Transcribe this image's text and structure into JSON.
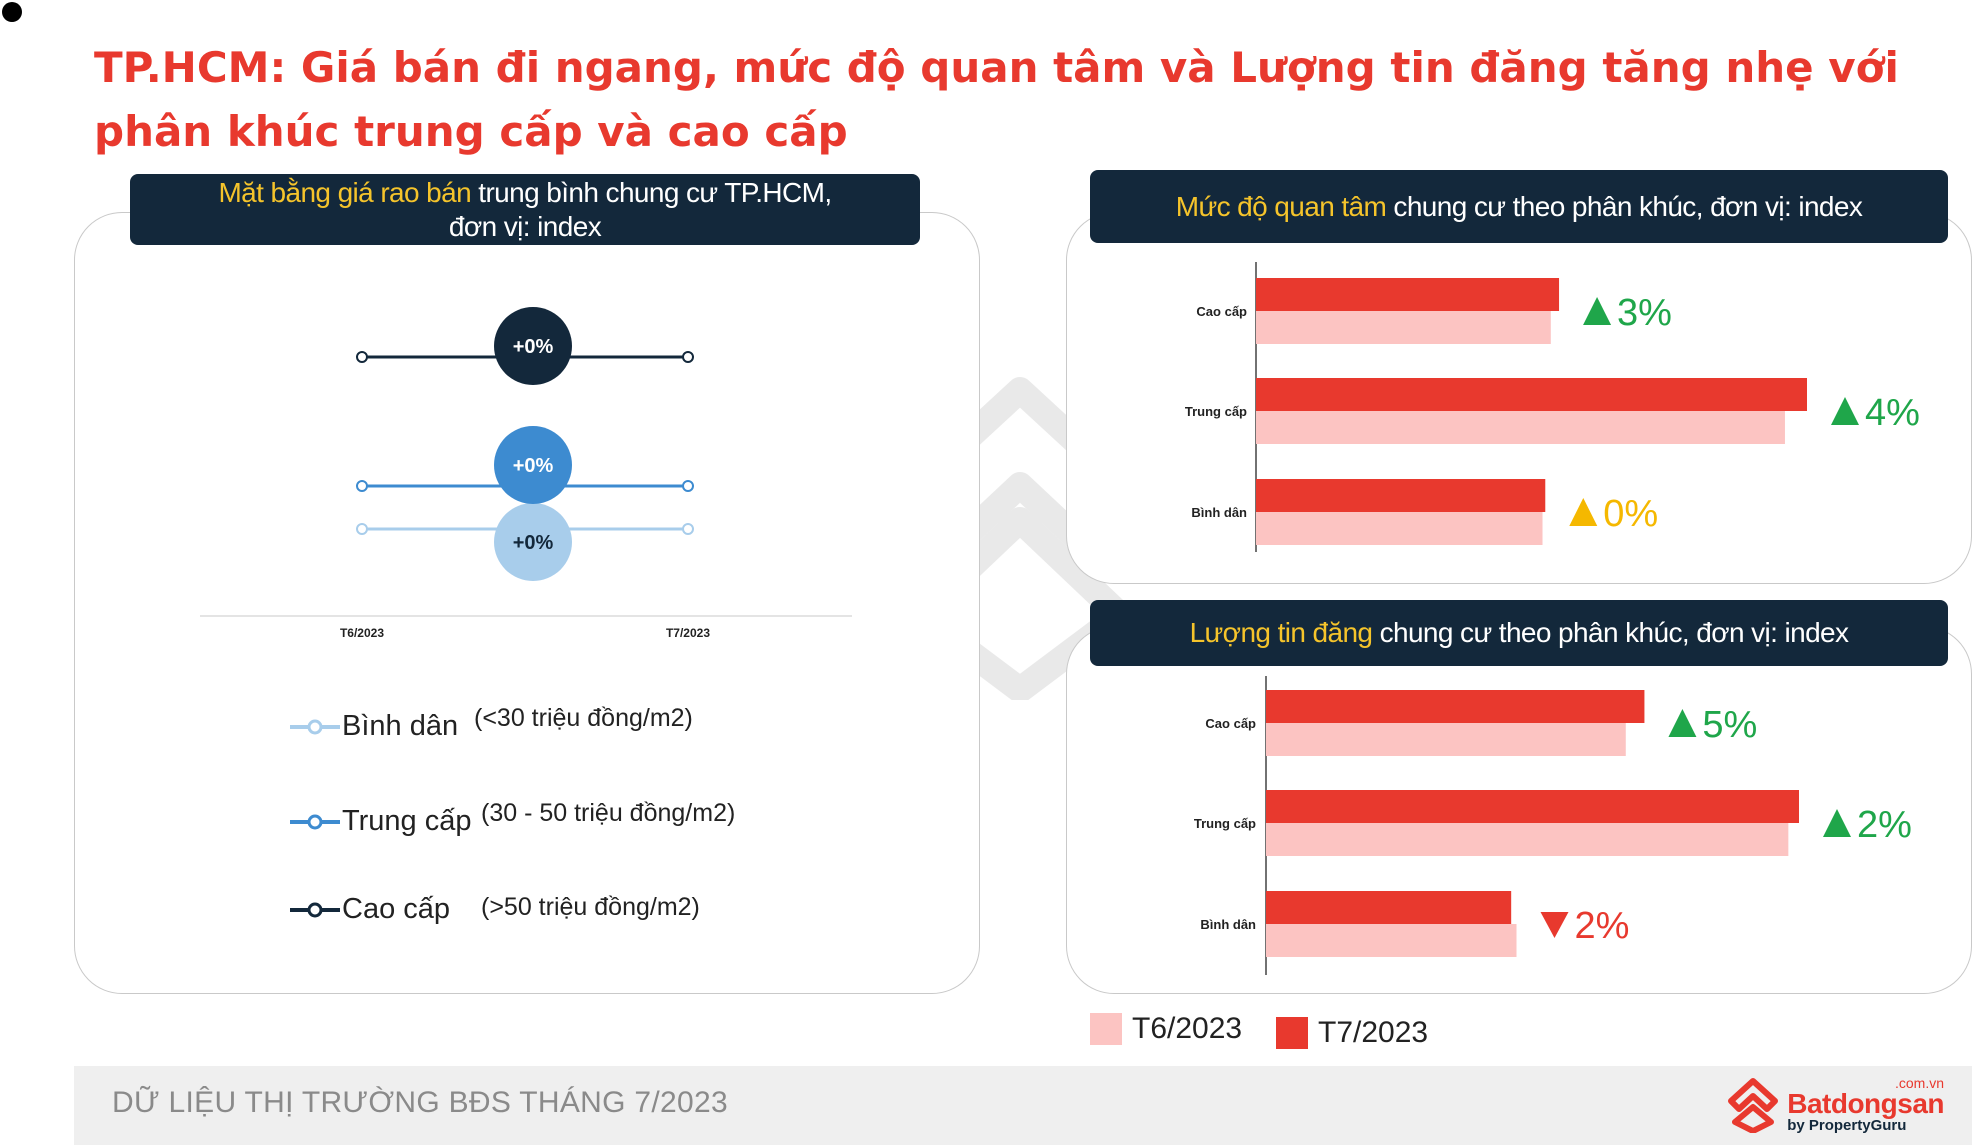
{
  "page": {
    "title": "TP.HCM: Giá bán đi ngang, mức độ quan tâm và Lượng tin đăng tăng nhẹ với phân khúc trung cấp và cao cấp",
    "footer_text": "DỮ LIỆU THỊ TRƯỜNG BĐS THÁNG 7/2023",
    "logo": {
      "main": "Batdongsan",
      "com": ".com.vn",
      "sub": "by PropertyGuru"
    }
  },
  "colors": {
    "title": "#e8392e",
    "banner_bg": "#13283b",
    "highlight": "#f5c42b",
    "t6": "#fcc4c2",
    "t7": "#e8392e",
    "up": "#1fa64a",
    "flat": "#f5b800",
    "down": "#e8392e",
    "cao_cap_line": "#13283b",
    "trung_cap_line": "#3d8bd0",
    "binh_dan_line": "#a8cdeb"
  },
  "price_panel": {
    "banner_highlight": "Mặt bằng giá rao bán",
    "banner_rest": " trung bình chung cư TP.HCM,",
    "banner_line2": "đơn vị: index",
    "legend": [
      {
        "key": "binh_dan",
        "label": "Bình dân",
        "range": "(<30 triệu đồng/m2)"
      },
      {
        "key": "trung_cap",
        "label": "Trung cấp",
        "range": "(30 - 50 triệu đồng/m2)"
      },
      {
        "key": "cao_cap",
        "label": "Cao cấp",
        "range": "(>50 triệu đồng/m2)"
      }
    ]
  },
  "interest_panel": {
    "banner_highlight": "Mức độ quan tâm",
    "banner_rest": " chung cư theo phân khúc, đơn vị: index"
  },
  "listing_panel": {
    "banner_highlight": "Lượng tin đăng",
    "banner_rest": " chung cư theo phân khúc, đơn vị: index"
  },
  "bar_legend": [
    {
      "key": "t6",
      "label": "T6/2023"
    },
    {
      "key": "t7",
      "label": "T7/2023"
    }
  ],
  "chart_data": [
    {
      "id": "price",
      "type": "line",
      "title": "Mặt bằng giá rao bán trung bình chung cư TP.HCM, đơn vị: index",
      "categories": [
        "T6/2023",
        "T7/2023"
      ],
      "series": [
        {
          "name": "Cao cấp",
          "values": [
            100,
            100
          ],
          "change_label": "+0%"
        },
        {
          "name": "Trung cấp",
          "values": [
            100,
            100
          ],
          "change_label": "+0%"
        },
        {
          "name": "Bình dân",
          "values": [
            100,
            100
          ],
          "change_label": "+0%"
        }
      ]
    },
    {
      "id": "interest",
      "type": "bar",
      "orientation": "horizontal",
      "title": "Mức độ quan tâm chung cư theo phân khúc, đơn vị: index",
      "categories": [
        "Cao cấp",
        "Trung cấp",
        "Bình dân"
      ],
      "series": [
        {
          "name": "T7/2023",
          "values": [
            0.55,
            1.0,
            0.525
          ]
        },
        {
          "name": "T6/2023",
          "values": [
            0.535,
            0.96,
            0.52
          ]
        }
      ],
      "changes": [
        {
          "label": "3%",
          "dir": "up"
        },
        {
          "label": "4%",
          "dir": "up"
        },
        {
          "label": "0%",
          "dir": "flat"
        }
      ]
    },
    {
      "id": "listings",
      "type": "bar",
      "orientation": "horizontal",
      "title": "Lượng tin đăng chung cư theo phân khúc, đơn vị: index",
      "categories": [
        "Cao cấp",
        "Trung cấp",
        "Bình dân"
      ],
      "series": [
        {
          "name": "T7/2023",
          "values": [
            0.71,
            1.0,
            0.46
          ]
        },
        {
          "name": "T6/2023",
          "values": [
            0.675,
            0.98,
            0.47
          ]
        }
      ],
      "changes": [
        {
          "label": "5%",
          "dir": "up"
        },
        {
          "label": "2%",
          "dir": "up"
        },
        {
          "label": "2%",
          "dir": "down"
        }
      ]
    }
  ]
}
